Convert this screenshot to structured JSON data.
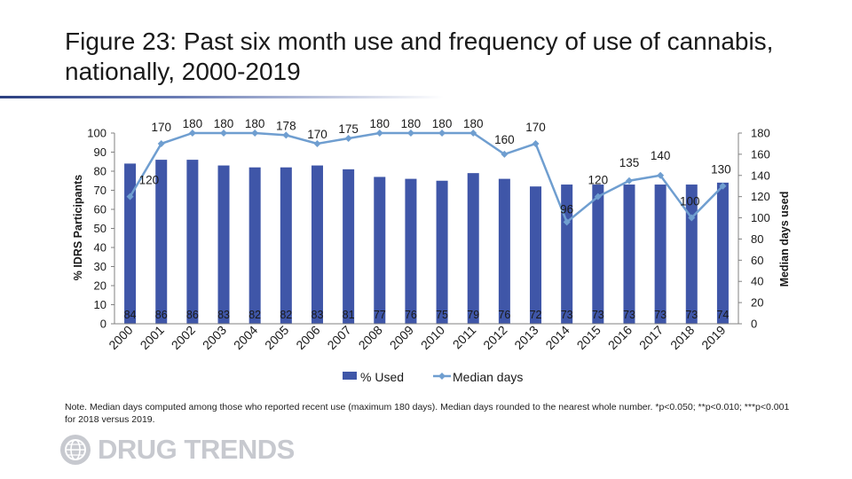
{
  "title": "Figure 23: Past six month use and frequency of use of cannabis, nationally, 2000-2019",
  "note": "Note. Median days computed among those who reported recent use (maximum 180 days). Median days rounded to the nearest whole number. *p<0.050; **p<0.010; ***p<0.001 for 2018 versus 2019.",
  "logo": {
    "text": "DRUG TRENDS",
    "icon": "globe-icon"
  },
  "colors": {
    "bar": "#3f56a8",
    "line": "#6f9ed0",
    "axis": "#808080",
    "text": "#1a1a1a"
  },
  "chart_data": {
    "type": "bar",
    "categories": [
      "2000",
      "2001",
      "2002",
      "2003",
      "2004",
      "2005",
      "2006",
      "2007",
      "2008",
      "2009",
      "2010",
      "2011",
      "2012",
      "2013",
      "2014",
      "2015",
      "2016",
      "2017",
      "2018",
      "2019"
    ],
    "series": [
      {
        "name": "% Used",
        "type": "bar",
        "axis": "left",
        "values": [
          84,
          86,
          86,
          83,
          82,
          82,
          83,
          81,
          77,
          76,
          75,
          79,
          76,
          72,
          73,
          73,
          73,
          73,
          73,
          74
        ]
      },
      {
        "name": "Median days",
        "type": "line",
        "axis": "right",
        "values": [
          120,
          170,
          180,
          180,
          180,
          178,
          170,
          175,
          180,
          180,
          180,
          180,
          160,
          170,
          96,
          120,
          135,
          140,
          100,
          130
        ]
      }
    ],
    "ylabel": "% IDRS Participants",
    "y2label": "Median days used",
    "ylim": [
      0,
      100
    ],
    "y2lim": [
      0,
      180
    ],
    "yticks": [
      "0",
      "10",
      "20",
      "30",
      "40",
      "50",
      "60",
      "70",
      "80",
      "90",
      "100"
    ],
    "y2ticks": [
      "0",
      "20",
      "40",
      "60",
      "80",
      "100",
      "120",
      "140",
      "160",
      "180"
    ],
    "legend": "bottom",
    "grid": false
  }
}
